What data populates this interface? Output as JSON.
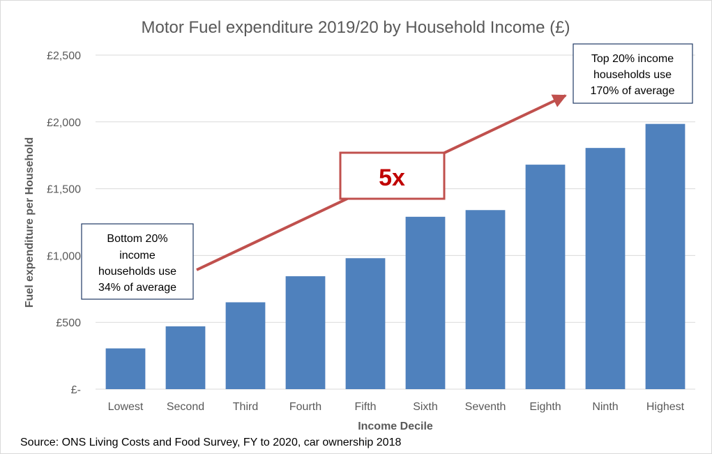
{
  "chart_data": {
    "type": "bar",
    "title": "Motor Fuel expenditure 2019/20 by Household Income (£)",
    "xlabel": "Income Decile",
    "ylabel": "Fuel expenditure per Household",
    "categories": [
      "Lowest",
      "Second",
      "Third",
      "Fourth",
      "Fifth",
      "Sixth",
      "Seventh",
      "Eighth",
      "Ninth",
      "Highest"
    ],
    "values": [
      305,
      470,
      650,
      845,
      980,
      1290,
      1340,
      1680,
      1805,
      1985
    ],
    "ylim": [
      0,
      2500
    ],
    "yticks": [
      0,
      500,
      1000,
      1500,
      2000,
      2500
    ],
    "ytick_labels": [
      "£-",
      "£500",
      "£1,000",
      "£1,500",
      "£2,000",
      "£2,500"
    ],
    "grid": true,
    "bar_color": "#4f81bd",
    "annotations": {
      "bottom": [
        "Bottom 20%",
        "income",
        "households use",
        "34% of average"
      ],
      "top": [
        "Top  20% income",
        "households use",
        "170% of average"
      ],
      "multiplier": "5x",
      "arrow_color": "#c0504d"
    }
  },
  "source": "Source: ONS Living Costs and Food Survey, FY to 2020, car ownership 2018"
}
